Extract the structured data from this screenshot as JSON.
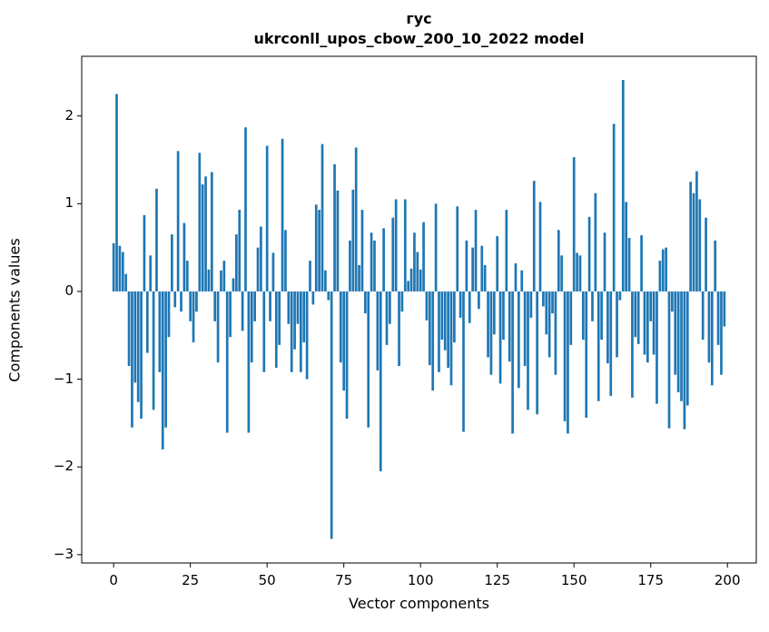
{
  "figure": {
    "background": "#ffffff"
  },
  "chart_data": {
    "type": "bar",
    "title_line1": "гус",
    "title_line2": "ukrconll_upos_cbow_200_10_2022 model",
    "xlabel": "Vector components",
    "ylabel": "Components values",
    "bar_color": "#1f77b4",
    "axis_color": "#000000",
    "grid": false,
    "legend": "none",
    "bar_width": 0.8,
    "xlim": [
      -10.4,
      209.4
    ],
    "ylim": [
      -3.095,
      2.68
    ],
    "x_tick_values": [
      0,
      25,
      50,
      75,
      100,
      125,
      150,
      175,
      200
    ],
    "x_tick_labels": [
      "0",
      "25",
      "50",
      "75",
      "100",
      "125",
      "150",
      "175",
      "200"
    ],
    "y_tick_values": [
      2,
      1,
      0,
      -1,
      -2,
      -3
    ],
    "y_tick_labels": [
      "2",
      "1",
      "0",
      "−1",
      "−2",
      "−3"
    ],
    "x_is_index": true,
    "values": [
      0.55,
      2.25,
      0.52,
      0.45,
      0.2,
      -0.85,
      -1.55,
      -1.04,
      -1.26,
      -1.45,
      0.87,
      -0.7,
      0.41,
      -1.35,
      1.17,
      -0.92,
      -1.8,
      -1.55,
      -0.52,
      0.65,
      -0.18,
      1.6,
      -0.23,
      0.78,
      0.35,
      -0.34,
      -0.58,
      -0.23,
      1.58,
      1.22,
      1.31,
      0.25,
      1.36,
      -0.34,
      -0.81,
      0.24,
      0.35,
      -1.61,
      -0.52,
      0.15,
      0.65,
      0.93,
      -0.45,
      1.87,
      -1.61,
      -0.81,
      -0.34,
      0.5,
      0.74,
      -0.92,
      1.66,
      -0.34,
      0.44,
      -0.87,
      -0.61,
      1.74,
      0.7,
      -0.37,
      -0.92,
      -0.66,
      -0.37,
      -0.92,
      -0.58,
      -1.0,
      0.35,
      -0.15,
      0.99,
      0.93,
      1.68,
      0.24,
      -0.1,
      -2.82,
      1.45,
      1.15,
      -0.81,
      -1.13,
      -1.45,
      0.58,
      1.16,
      1.64,
      0.3,
      0.93,
      -0.25,
      -1.55,
      0.67,
      0.58,
      -0.9,
      -2.05,
      0.72,
      -0.61,
      -0.37,
      0.84,
      1.05,
      -0.85,
      -0.23,
      1.05,
      0.12,
      0.26,
      0.67,
      0.45,
      0.25,
      0.79,
      -0.33,
      -0.84,
      -1.13,
      1.0,
      -0.92,
      -0.55,
      -0.67,
      -0.87,
      -1.07,
      -0.58,
      0.97,
      -0.3,
      -1.6,
      0.58,
      -0.36,
      0.5,
      0.93,
      -0.2,
      0.52,
      0.3,
      -0.75,
      -0.95,
      -0.49,
      0.63,
      -1.05,
      -0.55,
      0.93,
      -0.8,
      -1.62,
      0.32,
      -1.1,
      0.24,
      -0.85,
      -1.35,
      -0.3,
      1.26,
      -1.4,
      1.02,
      -0.17,
      -0.49,
      -0.75,
      -0.25,
      -0.95,
      0.7,
      0.41,
      -1.48,
      -1.62,
      -0.61,
      1.53,
      0.44,
      0.41,
      -0.55,
      -1.44,
      0.85,
      -0.34,
      1.12,
      -1.25,
      -0.55,
      0.67,
      -0.82,
      -1.19,
      1.91,
      -0.75,
      -0.1,
      2.41,
      1.02,
      0.61,
      -1.21,
      -0.52,
      -0.6,
      0.64,
      -0.72,
      -0.81,
      -0.34,
      -0.72,
      -1.28,
      0.35,
      0.48,
      0.5,
      -1.56,
      -0.23,
      -0.95,
      -1.15,
      -1.25,
      -1.57,
      -1.3,
      1.25,
      1.12,
      1.37,
      1.05,
      -0.55,
      0.84,
      -0.81,
      -1.07,
      0.58,
      -0.61,
      -0.95,
      -0.4
    ]
  }
}
